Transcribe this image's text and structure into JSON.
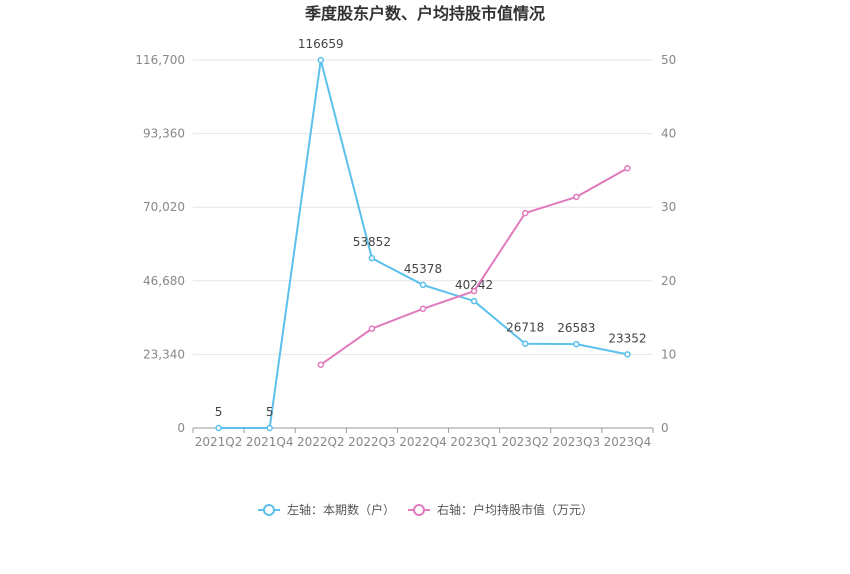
{
  "chart_data": {
    "type": "line",
    "title": "季度股东户数、户均持股市值情况",
    "categories": [
      "2021Q2",
      "2021Q4",
      "2022Q2",
      "2022Q3",
      "2022Q4",
      "2023Q1",
      "2023Q2",
      "2023Q3",
      "2023Q4"
    ],
    "left_axis": {
      "ylim": [
        0,
        116700
      ],
      "ticks": [
        "0",
        "23,340",
        "46,680",
        "70,020",
        "93,360",
        "116,700"
      ],
      "tick_values": [
        0,
        23340,
        46680,
        70020,
        93360,
        116700
      ]
    },
    "right_axis": {
      "ylim": [
        0,
        50
      ],
      "ticks": [
        "0",
        "10",
        "20",
        "30",
        "40",
        "50"
      ],
      "tick_values": [
        0,
        10,
        20,
        30,
        40,
        50
      ]
    },
    "grid": true,
    "legend_position": "bottom",
    "series": [
      {
        "name": "左轴：本期数（户）",
        "axis": "left",
        "color": "#5bc0eb",
        "values": [
          5,
          5,
          116659,
          53852,
          45378,
          40242,
          26718,
          26583,
          23352
        ],
        "labels": [
          "5",
          "5",
          "116659",
          "53852",
          "45378",
          "40242",
          "26718",
          "26583",
          "23352"
        ]
      },
      {
        "name": "右轴：户均持股市值（万元）",
        "axis": "right",
        "color": "#e07bbd",
        "values": [
          null,
          null,
          8.6,
          13.5,
          16.2,
          18.6,
          29.2,
          31.4,
          35.3
        ]
      }
    ]
  }
}
